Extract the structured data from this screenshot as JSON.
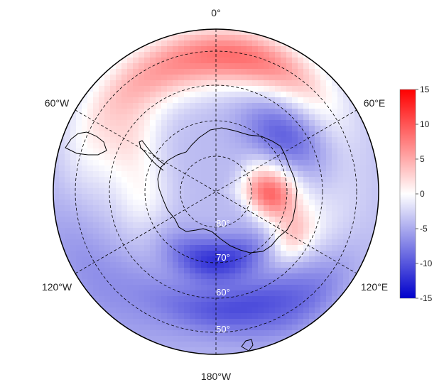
{
  "map": {
    "projection": "south-polar stereographic",
    "field": "anomaly",
    "colormap": {
      "low": "#0000cc",
      "mid": "#ffffff",
      "high": "#ff0000"
    },
    "lon_labels": {
      "top": "0°",
      "upper_left": "60°W",
      "upper_right": "60°E",
      "lower_left": "120°W",
      "lower_right": "120°E",
      "bottom": "180°W"
    },
    "lat_labels": [
      "50°",
      "60°",
      "70°",
      "80°"
    ],
    "colorbar": {
      "min": -15,
      "max": 15,
      "ticks": [
        "15",
        "10",
        "5",
        "0",
        "-5",
        "-10",
        "-15"
      ]
    },
    "pattern_notes": [
      "positive anomaly band over South Atlantic / Weddell sector near 0°",
      "strong positive anomaly over East Antarctica interior near 90°E",
      "negative anomalies over Pacific sector and Indian Ocean near 60°E–120°E"
    ]
  }
}
